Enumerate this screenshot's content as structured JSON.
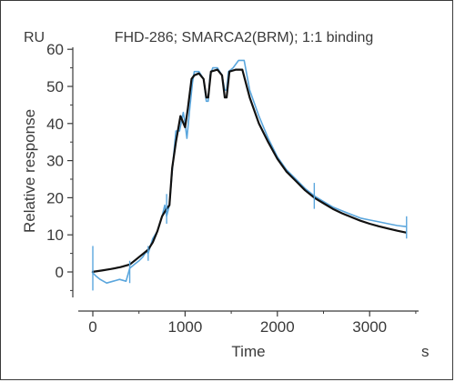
{
  "chart_data": {
    "type": "line",
    "title": "FHD-286; SMARCA2(BRM); 1:1 binding",
    "unit_y": "RU",
    "unit_x": "s",
    "xlabel": "Time",
    "ylabel": "Relative response",
    "xlim": [
      -100,
      3500
    ],
    "ylim": [
      -7,
      60
    ],
    "x_ticks": [
      0,
      1000,
      2000,
      3000
    ],
    "y_ticks": [
      0,
      10,
      20,
      30,
      40,
      50,
      60
    ],
    "grid": false,
    "colors": {
      "measured": "#5aa6dd",
      "fit": "#111111",
      "axis": "#3a3a3a"
    },
    "series": [
      {
        "points": [
          [
            -10,
            0
          ],
          [
            30,
            -1
          ],
          [
            80,
            -2
          ],
          [
            150,
            -3
          ],
          [
            220,
            -2.5
          ],
          [
            290,
            -2
          ],
          [
            360,
            -2.5
          ],
          [
            400,
            1
          ],
          [
            450,
            2
          ],
          [
            500,
            3
          ],
          [
            540,
            4
          ],
          [
            580,
            5.5
          ],
          [
            600,
            5
          ],
          [
            650,
            9
          ],
          [
            700,
            11
          ],
          [
            750,
            15
          ],
          [
            780,
            18
          ],
          [
            800,
            15
          ],
          [
            830,
            18
          ],
          [
            860,
            27
          ],
          [
            900,
            38
          ],
          [
            940,
            38
          ],
          [
            980,
            43
          ],
          [
            1000,
            40
          ],
          [
            1020,
            36
          ],
          [
            1050,
            44
          ],
          [
            1080,
            51
          ],
          [
            1100,
            54
          ],
          [
            1150,
            54
          ],
          [
            1200,
            52
          ],
          [
            1230,
            46
          ],
          [
            1250,
            46
          ],
          [
            1270,
            53
          ],
          [
            1300,
            55
          ],
          [
            1350,
            55
          ],
          [
            1400,
            53
          ],
          [
            1430,
            49
          ],
          [
            1450,
            49
          ],
          [
            1470,
            54
          ],
          [
            1520,
            55
          ],
          [
            1580,
            57
          ],
          [
            1640,
            57
          ],
          [
            1700,
            49
          ],
          [
            1800,
            42
          ],
          [
            1900,
            36
          ],
          [
            2000,
            31
          ],
          [
            2100,
            27.5
          ],
          [
            2200,
            25
          ],
          [
            2300,
            22.5
          ],
          [
            2400,
            20.5
          ],
          [
            2500,
            19
          ],
          [
            2600,
            17.5
          ],
          [
            2700,
            16.5
          ],
          [
            2800,
            15.5
          ],
          [
            2900,
            14.5
          ],
          [
            3000,
            14
          ],
          [
            3100,
            13.5
          ],
          [
            3200,
            13
          ],
          [
            3300,
            12.5
          ],
          [
            3400,
            12.2
          ]
        ]
      },
      {
        "points": [
          [
            -10,
            0
          ],
          [
            100,
            0.4
          ],
          [
            200,
            0.8
          ],
          [
            300,
            1.3
          ],
          [
            400,
            2
          ],
          [
            450,
            3
          ],
          [
            500,
            4
          ],
          [
            550,
            5
          ],
          [
            600,
            6
          ],
          [
            650,
            8
          ],
          [
            700,
            11
          ],
          [
            750,
            15
          ],
          [
            800,
            17
          ],
          [
            830,
            18
          ],
          [
            860,
            28
          ],
          [
            900,
            35
          ],
          [
            950,
            42
          ],
          [
            1000,
            39
          ],
          [
            1030,
            44
          ],
          [
            1070,
            52
          ],
          [
            1100,
            53
          ],
          [
            1150,
            53.5
          ],
          [
            1200,
            52
          ],
          [
            1230,
            47
          ],
          [
            1250,
            47
          ],
          [
            1280,
            54
          ],
          [
            1350,
            54.5
          ],
          [
            1400,
            53
          ],
          [
            1430,
            47
          ],
          [
            1450,
            47
          ],
          [
            1480,
            54
          ],
          [
            1550,
            54.5
          ],
          [
            1620,
            54.5
          ],
          [
            1700,
            47
          ],
          [
            1800,
            40
          ],
          [
            1900,
            35
          ],
          [
            2000,
            30.5
          ],
          [
            2100,
            27
          ],
          [
            2200,
            24.5
          ],
          [
            2300,
            22
          ],
          [
            2400,
            20
          ],
          [
            2500,
            18.5
          ],
          [
            2600,
            17
          ],
          [
            2700,
            15.8
          ],
          [
            2800,
            14.8
          ],
          [
            2900,
            13.8
          ],
          [
            3000,
            13
          ],
          [
            3100,
            12.3
          ],
          [
            3200,
            11.7
          ],
          [
            3300,
            11.1
          ],
          [
            3400,
            10.6
          ]
        ]
      }
    ]
  }
}
